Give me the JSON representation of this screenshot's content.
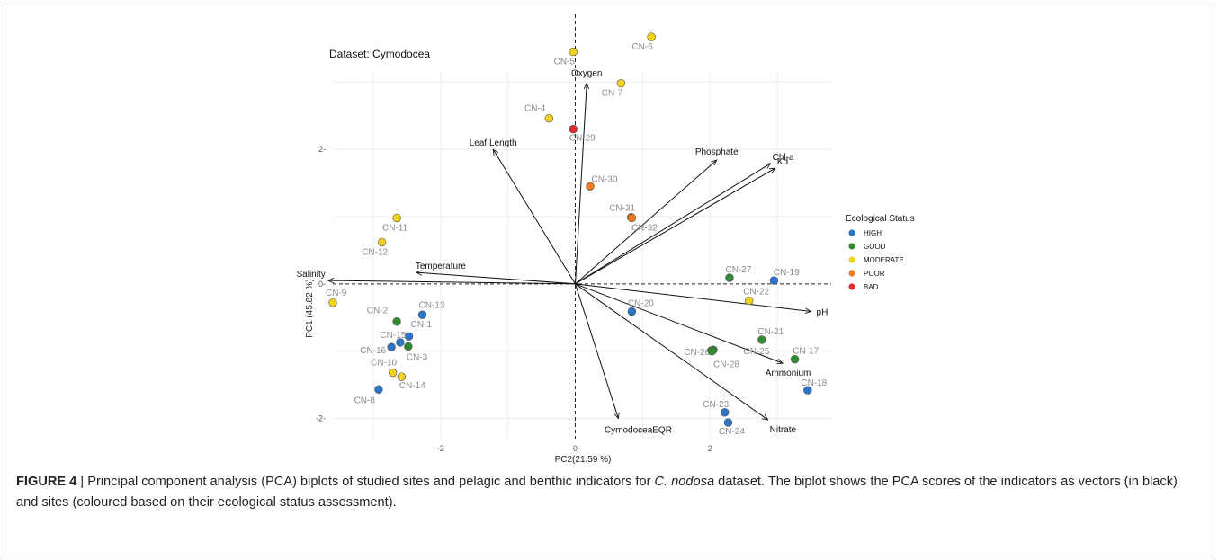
{
  "figure": {
    "label": "FIGURE 4",
    "separator": " | ",
    "caption_pre": "Principal component analysis (PCA) biplots of studied sites and pelagic and benthic indicators for ",
    "caption_species": "C. nodosa",
    "caption_post": " dataset. The biplot shows the PCA scores of the indicators as vectors (in black) and sites (coloured based on their ecological status assessment)."
  },
  "colors": {
    "HIGH": "#2a74c9",
    "GOOD": "#2e8b2e",
    "MODERATE": "#f2d21e",
    "POOR": "#ec7c1c",
    "BAD": "#e02d2d",
    "vector": "#111111",
    "grid": "#ececec"
  },
  "chart_data": {
    "type": "scatter",
    "title": "Dataset: Cymodocea",
    "xlabel": "PC2(21.59 %)",
    "ylabel": "PC1 (45.82 %)",
    "xlim": [
      -3.6,
      3.8
    ],
    "ylim": [
      -2.3,
      3.15
    ],
    "x_ticks": [
      -2,
      0,
      2
    ],
    "y_ticks": [
      -2,
      0,
      2
    ],
    "grid": true,
    "zero_lines": "dashed",
    "legend": {
      "title": "Ecological Status",
      "position": "right",
      "entries": [
        "HIGH",
        "GOOD",
        "MODERATE",
        "POOR",
        "BAD"
      ]
    },
    "sites": [
      {
        "label": "CN-1",
        "x": -2.47,
        "y": -0.78,
        "status": "HIGH"
      },
      {
        "label": "CN-2",
        "x": -2.65,
        "y": -0.56,
        "status": "GOOD"
      },
      {
        "label": "CN-3",
        "x": -2.48,
        "y": -0.93,
        "status": "GOOD"
      },
      {
        "label": "CN-4",
        "x": -0.39,
        "y": 2.46,
        "status": "MODERATE"
      },
      {
        "label": "CN-5",
        "x": -0.03,
        "y": 3.45,
        "status": "MODERATE"
      },
      {
        "label": "CN-6",
        "x": 1.13,
        "y": 3.67,
        "status": "MODERATE"
      },
      {
        "label": "CN-7",
        "x": 0.68,
        "y": 2.98,
        "status": "MODERATE"
      },
      {
        "label": "CN-8",
        "x": -2.92,
        "y": -1.57,
        "status": "HIGH"
      },
      {
        "label": "CN-9",
        "x": -3.6,
        "y": -0.28,
        "status": "MODERATE"
      },
      {
        "label": "CN-10",
        "x": -2.71,
        "y": -1.32,
        "status": "MODERATE"
      },
      {
        "label": "CN-11",
        "x": -2.65,
        "y": 0.98,
        "status": "MODERATE"
      },
      {
        "label": "CN-12",
        "x": -2.87,
        "y": 0.62,
        "status": "MODERATE"
      },
      {
        "label": "CN-13",
        "x": -2.27,
        "y": -0.46,
        "status": "HIGH"
      },
      {
        "label": "CN-14",
        "x": -2.58,
        "y": -1.38,
        "status": "MODERATE"
      },
      {
        "label": "CN-15",
        "x": -2.6,
        "y": -0.87,
        "status": "HIGH"
      },
      {
        "label": "CN-16",
        "x": -2.73,
        "y": -0.94,
        "status": "HIGH"
      },
      {
        "label": "CN-17",
        "x": 3.26,
        "y": -1.12,
        "status": "GOOD"
      },
      {
        "label": "CN-18",
        "x": 3.45,
        "y": -1.58,
        "status": "HIGH"
      },
      {
        "label": "CN-19",
        "x": 2.95,
        "y": 0.05,
        "status": "HIGH"
      },
      {
        "label": "CN-20",
        "x": 0.84,
        "y": -0.41,
        "status": "HIGH"
      },
      {
        "label": "CN-21",
        "x": 2.77,
        "y": -0.83,
        "status": "GOOD"
      },
      {
        "label": "CN-22",
        "x": 2.58,
        "y": -0.25,
        "status": "MODERATE"
      },
      {
        "label": "CN-23",
        "x": 2.22,
        "y": -1.91,
        "status": "HIGH"
      },
      {
        "label": "CN-24",
        "x": 2.27,
        "y": -2.06,
        "status": "HIGH"
      },
      {
        "label": "CN-25",
        "x": 2.05,
        "y": -0.98,
        "status": "GOOD"
      },
      {
        "label": "CN-26",
        "x": 2.02,
        "y": -0.99,
        "status": "GOOD"
      },
      {
        "label": "CN-27",
        "x": 2.29,
        "y": 0.09,
        "status": "GOOD"
      },
      {
        "label": "CN-28",
        "x": 2.03,
        "y": -1.0,
        "status": "GOOD"
      },
      {
        "label": "CN-29",
        "x": -0.03,
        "y": 2.3,
        "status": "BAD"
      },
      {
        "label": "CN-30",
        "x": 0.22,
        "y": 1.45,
        "status": "POOR"
      },
      {
        "label": "CN-31",
        "x": 0.83,
        "y": 0.99,
        "status": "POOR"
      },
      {
        "label": "CN-32",
        "x": 0.84,
        "y": 0.98,
        "status": "POOR"
      }
    ],
    "vectors": [
      {
        "label": "Oxygen",
        "x": 0.17,
        "y": 2.98
      },
      {
        "label": "Leaf Length",
        "x": -1.22,
        "y": 2.0
      },
      {
        "label": "Phosphate",
        "x": 2.1,
        "y": 1.84
      },
      {
        "label": "Chl-a",
        "x": 2.9,
        "y": 1.79
      },
      {
        "label": "Kd",
        "x": 2.97,
        "y": 1.72
      },
      {
        "label": "Salinity",
        "x": -3.67,
        "y": 0.05
      },
      {
        "label": "Temperature",
        "x": -2.36,
        "y": 0.17
      },
      {
        "label": "pH",
        "x": 3.5,
        "y": -0.41
      },
      {
        "label": "Ammonium",
        "x": 3.08,
        "y": -1.18
      },
      {
        "label": "Nitrate",
        "x": 2.86,
        "y": -2.02
      },
      {
        "label": "CymodoceaEQR",
        "x": 0.64,
        "y": -2.0
      }
    ]
  }
}
